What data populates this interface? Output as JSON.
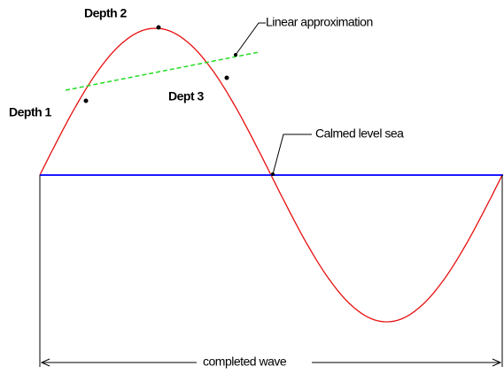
{
  "labels": {
    "depth1": "Depth 1",
    "depth2": "Depth 2",
    "depth3": "Dept 3",
    "linear": "Linear approximation",
    "calm": "Calmed level sea",
    "wave": "completed wave"
  }
}
